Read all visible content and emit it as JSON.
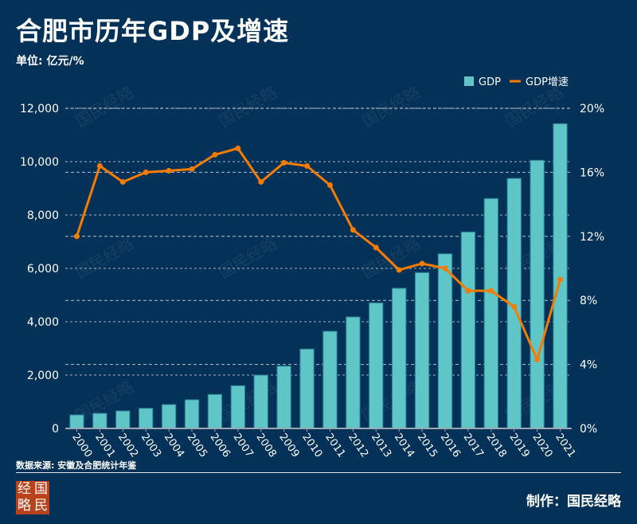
{
  "title": "合肥市历年GDP及增速",
  "unit": "单位: 亿元/%",
  "source": "数据来源: 安徽及合肥统计年鉴",
  "credit": "制作：国民经略",
  "logo_text": [
    "经",
    "国",
    "略",
    "民"
  ],
  "watermark": "国民经略",
  "chart_data": {
    "type": "bar+line",
    "categories": [
      "2000",
      "2001",
      "2002",
      "2003",
      "2004",
      "2005",
      "2006",
      "2007",
      "2008",
      "2009",
      "2010",
      "2011",
      "2012",
      "2013",
      "2014",
      "2015",
      "2016",
      "2017",
      "2018",
      "2019",
      "2020",
      "2021"
    ],
    "series": [
      {
        "name": "GDP",
        "type": "bar",
        "axis": "left",
        "color": "#5fc6c8",
        "values": [
          507,
          567,
          657,
          755,
          896,
          1075,
          1275,
          1603,
          2000,
          2337,
          2976,
          3642,
          4179,
          4707,
          5254,
          5842,
          6546,
          7364,
          8618,
          9373,
          10051,
          11424
        ]
      },
      {
        "name": "GDP增速",
        "type": "line",
        "axis": "right",
        "color": "#f57c00",
        "values": [
          12.0,
          16.4,
          15.4,
          16.0,
          16.1,
          16.2,
          17.1,
          17.5,
          15.4,
          16.6,
          16.4,
          15.2,
          12.4,
          11.3,
          9.9,
          10.3,
          10.0,
          8.6,
          8.6,
          7.6,
          4.3,
          9.3
        ]
      }
    ],
    "left_axis": {
      "min": 0,
      "max": 12000,
      "ticks": [
        "0",
        "2,000",
        "4,000",
        "6,000",
        "8,000",
        "10,000",
        "12,000"
      ]
    },
    "right_axis": {
      "min": 0,
      "max": 20,
      "ticks": [
        "0%",
        "4%",
        "8%",
        "12%",
        "16%",
        "20%"
      ]
    },
    "grid": true,
    "legend": "top-right"
  }
}
